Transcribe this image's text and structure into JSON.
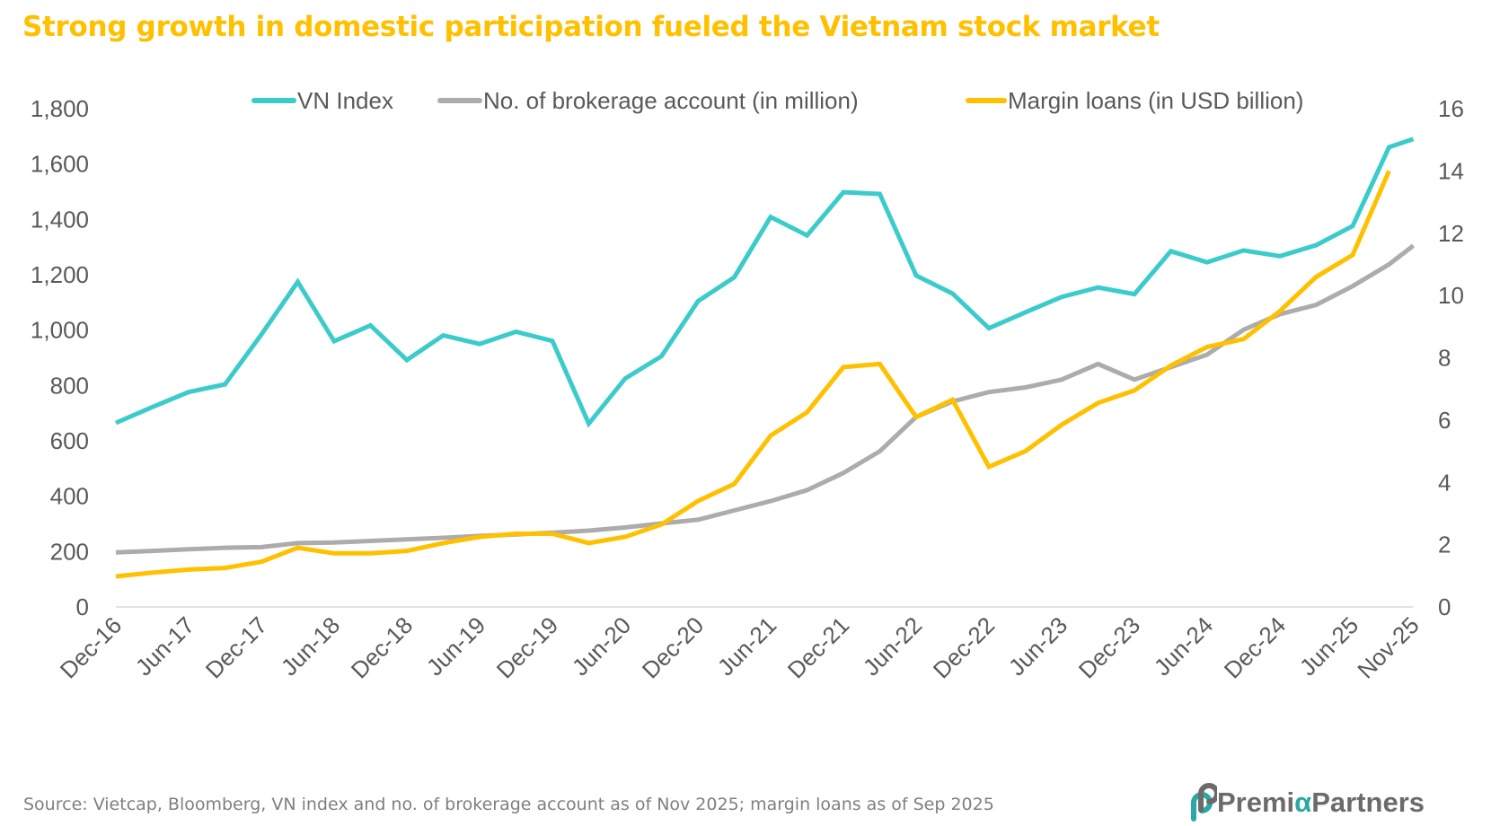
{
  "title": "Strong growth in domestic participation fueled the Vietnam stock market",
  "source": "Source: Vietcap, Bloomberg, VN index and no. of brokerage account as of Nov 2025; margin loans as of Sep 2025",
  "logo": {
    "prefix": "Premi",
    "alpha": "α",
    "suffix": "Partners"
  },
  "chart_data": {
    "type": "line",
    "title": "Strong growth in domestic participation fueled the Vietnam stock market",
    "x": [
      "Dec-16",
      "Mar-17",
      "Jun-17",
      "Sep-17",
      "Dec-17",
      "Mar-18",
      "Jun-18",
      "Sep-18",
      "Dec-18",
      "Mar-19",
      "Jun-19",
      "Sep-19",
      "Dec-19",
      "Mar-20",
      "Jun-20",
      "Sep-20",
      "Dec-20",
      "Mar-21",
      "Jun-21",
      "Sep-21",
      "Dec-21",
      "Mar-22",
      "Jun-22",
      "Sep-22",
      "Dec-22",
      "Mar-23",
      "Jun-23",
      "Sep-23",
      "Dec-23",
      "Mar-24",
      "Jun-24",
      "Sep-24",
      "Dec-24",
      "Mar-25",
      "Jun-25",
      "Sep-25",
      "Nov-25"
    ],
    "x_ticks": [
      "Dec-16",
      "Jun-17",
      "Dec-17",
      "Jun-18",
      "Dec-18",
      "Jun-19",
      "Dec-19",
      "Jun-20",
      "Dec-20",
      "Jun-21",
      "Dec-21",
      "Jun-22",
      "Dec-22",
      "Jun-23",
      "Dec-23",
      "Jun-24",
      "Dec-24",
      "Jun-25",
      "Nov-25"
    ],
    "y_left": {
      "range": [
        0,
        1800
      ],
      "ticks": [
        "0",
        "200",
        "400",
        "600",
        "800",
        "1,000",
        "1,200",
        "1,400",
        "1,600",
        "1,800"
      ]
    },
    "y_right": {
      "range": [
        0,
        16
      ],
      "ticks": [
        "0",
        "2",
        "4",
        "6",
        "8",
        "10",
        "12",
        "14",
        "16"
      ]
    },
    "legend_position": "top",
    "grid": false,
    "series": [
      {
        "name": "VN Index",
        "axis": "left",
        "color": "#3CCBCB",
        "values": [
          665,
          722,
          776,
          804,
          984,
          1174,
          960,
          1017,
          892,
          981,
          950,
          994,
          961,
          662,
          825,
          906,
          1104,
          1191,
          1409,
          1342,
          1498,
          1492,
          1197,
          1132,
          1007,
          1064,
          1120,
          1154,
          1130,
          1285,
          1245,
          1288,
          1267,
          1307,
          1376,
          1661,
          1690
        ]
      },
      {
        "name": "No. of brokerage account (in million)",
        "axis": "right",
        "color": "#ADABAB",
        "values": [
          1.75,
          1.8,
          1.85,
          1.9,
          1.92,
          2.05,
          2.07,
          2.12,
          2.17,
          2.22,
          2.28,
          2.33,
          2.38,
          2.45,
          2.55,
          2.68,
          2.8,
          3.1,
          3.4,
          3.75,
          4.3,
          5.0,
          6.1,
          6.6,
          6.9,
          7.05,
          7.3,
          7.8,
          7.3,
          7.7,
          8.1,
          8.9,
          9.4,
          9.7,
          10.3,
          11.0,
          11.6
        ]
      },
      {
        "name": "Margin loans (in USD billion)",
        "axis": "right",
        "color": "#FFC000",
        "values": [
          0.98,
          1.1,
          1.2,
          1.25,
          1.45,
          1.9,
          1.72,
          1.72,
          1.8,
          2.05,
          2.25,
          2.35,
          2.35,
          2.05,
          2.25,
          2.65,
          3.4,
          3.95,
          5.5,
          6.25,
          7.7,
          7.8,
          6.1,
          6.65,
          4.5,
          5.0,
          5.85,
          6.55,
          6.95,
          7.75,
          8.35,
          8.6,
          9.5,
          10.6,
          11.3,
          14.0,
          null
        ]
      }
    ]
  }
}
